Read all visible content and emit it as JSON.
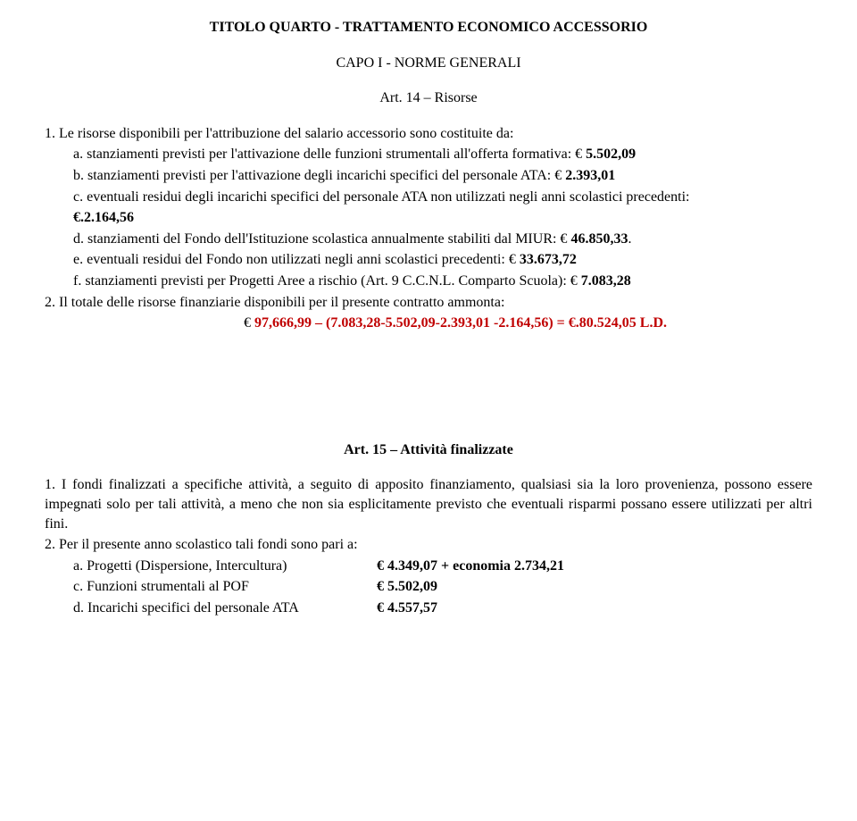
{
  "title_main": "TITOLO QUARTO - TRATTAMENTO ECONOMICO ACCESSORIO",
  "subtitle": "CAPO I - NORME GENERALI",
  "art14": {
    "title": "Art. 14 – Risorse",
    "item1_intro": "1.   Le risorse disponibili per l'attribuzione del salario accessorio sono costituite da:",
    "a_text": "a.   stanziamenti previsti per l'attivazione delle funzioni strumentali all'offerta formativa: € ",
    "a_val": "5.502,09",
    "b_text": "b.   stanziamenti previsti per l'attivazione degli incarichi specifici del personale ATA: € ",
    "b_val": "2.393,01",
    "c_text": "c.   eventuali residui degli incarichi specifici del personale ATA non utilizzati negli anni scolastici precedenti: ",
    "c_val": "€.2.164,56",
    "d_text": "d.   stanziamenti del Fondo dell'Istituzione scolastica annualmente stabiliti dal MIUR: € ",
    "d_val": "46.850,33",
    "d_dot": ".",
    "e_text": "e.   eventuali residui del Fondo non utilizzati negli anni scolastici precedenti: € ",
    "e_val": "33.673,72",
    "f_text": "f.   stanziamenti previsti per Progetti Aree a rischio (Art. 9 C.C.N.L. Comparto Scuola): € ",
    "f_val": "7.083,28",
    "item2_intro": "2.   Il totale delle risorse finanziarie disponibili per il presente contratto ammonta:",
    "total_prefix": "€ ",
    "total_calc1": "97,666,99 – (7.083,28-5.502,09-2.393,01 -2.164,56) = ",
    "total_result": "€.80.524,05 L.D."
  },
  "art15": {
    "title": "Art. 15 – Attività finalizzate",
    "p1": "1.   I fondi finalizzati a specifiche attività, a seguito di apposito finanziamento, qualsiasi sia la loro provenienza, possono essere impegnati solo per tali attività, a meno che non sia esplicitamente previsto che eventuali risparmi possano essere utilizzati per altri fini.",
    "p2_intro": "2.   Per il presente anno scolastico tali fondi sono pari a:",
    "a_label": "a.   Progetti (Dispersione, Intercultura)",
    "a_val": "€ 4.349,07 + economia 2.734,21",
    "c_label": "c.   Funzioni strumentali al POF",
    "c_val": "€ 5.502,09",
    "d_label": "d.   Incarichi specifici del personale ATA",
    "d_val": "€ 4.557,57"
  }
}
